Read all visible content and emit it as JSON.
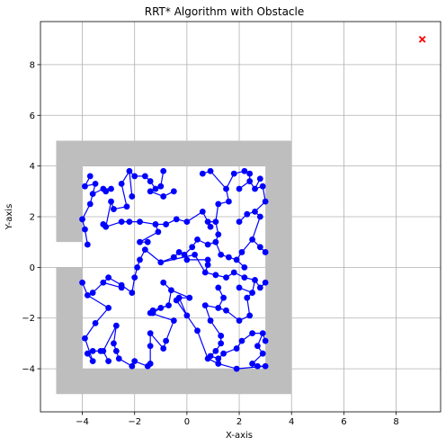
{
  "chart_data": {
    "type": "scatter",
    "title": "RRT* Algorithm with Obstacle",
    "xlabel": "X-axis",
    "ylabel": "Y-axis",
    "xlim": [
      -5.6,
      9.7
    ],
    "ylim": [
      -5.7,
      9.7
    ],
    "xticks": [
      -4,
      -2,
      0,
      2,
      4,
      6,
      8
    ],
    "yticks": [
      -4,
      -2,
      0,
      2,
      4,
      6,
      8
    ],
    "grid": true,
    "colors": {
      "tree": "#0000ff",
      "obstacle": "#bebebe",
      "goal": "#ff0000"
    },
    "obstacle": {
      "outer": [
        -5,
        -5,
        4,
        5
      ],
      "inner": [
        -4,
        -4,
        3,
        4
      ],
      "gap_y": [
        0,
        1
      ]
    },
    "goal": {
      "x": 9,
      "y": 9,
      "marker": "x"
    },
    "nodes": [
      [
        -3.7,
        3.6
      ],
      [
        -3.9,
        3.2
      ],
      [
        -3.5,
        3.3
      ],
      [
        -3.6,
        2.9
      ],
      [
        -3.2,
        3.1
      ],
      [
        -2.9,
        3.1
      ],
      [
        -3.1,
        3.0
      ],
      [
        -3.7,
        2.5
      ],
      [
        -4.0,
        1.9
      ],
      [
        -3.9,
        1.5
      ],
      [
        -3.8,
        0.9
      ],
      [
        -3.2,
        1.7
      ],
      [
        -3.1,
        1.6
      ],
      [
        -2.9,
        2.6
      ],
      [
        -2.8,
        2.3
      ],
      [
        -2.5,
        1.8
      ],
      [
        -2.3,
        2.4
      ],
      [
        -2.2,
        1.8
      ],
      [
        -2.5,
        3.3
      ],
      [
        -2.2,
        3.8
      ],
      [
        -2.1,
        2.8
      ],
      [
        -2.0,
        3.6
      ],
      [
        -1.8,
        1.8
      ],
      [
        -1.6,
        3.6
      ],
      [
        -1.4,
        3.4
      ],
      [
        -1.2,
        3.1
      ],
      [
        -1.4,
        3.0
      ],
      [
        -1.0,
        3.2
      ],
      [
        -0.9,
        3.8
      ],
      [
        -0.9,
        2.8
      ],
      [
        -0.5,
        3.0
      ],
      [
        -1.8,
        1.0
      ],
      [
        -1.5,
        1.0
      ],
      [
        -1.2,
        1.7
      ],
      [
        -1.1,
        1.4
      ],
      [
        -0.8,
        1.7
      ],
      [
        -0.4,
        1.9
      ],
      [
        0.0,
        1.8
      ],
      [
        0.6,
        2.2
      ],
      [
        0.8,
        1.8
      ],
      [
        0.9,
        1.6
      ],
      [
        1.1,
        1.8
      ],
      [
        1.2,
        2.5
      ],
      [
        1.6,
        2.6
      ],
      [
        1.5,
        3.1
      ],
      [
        1.8,
        3.7
      ],
      [
        0.9,
        3.8
      ],
      [
        0.6,
        3.7
      ],
      [
        2.2,
        3.8
      ],
      [
        2.4,
        3.7
      ],
      [
        2.4,
        3.4
      ],
      [
        2.0,
        3.1
      ],
      [
        2.6,
        3.1
      ],
      [
        2.9,
        3.2
      ],
      [
        2.8,
        3.5
      ],
      [
        3.0,
        2.6
      ],
      [
        2.6,
        2.2
      ],
      [
        2.3,
        2.1
      ],
      [
        2.8,
        2.0
      ],
      [
        2.0,
        1.8
      ],
      [
        2.5,
        1.1
      ],
      [
        2.8,
        0.8
      ],
      [
        3.0,
        0.6
      ],
      [
        2.1,
        0.6
      ],
      [
        1.9,
        0.3
      ],
      [
        2.2,
        0.0
      ],
      [
        1.6,
        0.4
      ],
      [
        1.3,
        0.5
      ],
      [
        1.1,
        1.0
      ],
      [
        1.2,
        1.3
      ],
      [
        0.8,
        0.9
      ],
      [
        0.4,
        1.1
      ],
      [
        0.2,
        0.8
      ],
      [
        -0.1,
        0.5
      ],
      [
        -0.3,
        0.6
      ],
      [
        -0.5,
        0.4
      ],
      [
        0.0,
        0.3
      ],
      [
        0.8,
        0.3
      ],
      [
        0.8,
        0.1
      ],
      [
        0.7,
        -0.2
      ],
      [
        1.1,
        -0.3
      ],
      [
        1.5,
        -0.4
      ],
      [
        1.8,
        -0.2
      ],
      [
        2.2,
        -0.4
      ],
      [
        2.6,
        -0.5
      ],
      [
        2.8,
        -0.8
      ],
      [
        3.0,
        -0.6
      ],
      [
        2.5,
        -1.0
      ],
      [
        2.0,
        -0.8
      ],
      [
        2.3,
        -1.2
      ],
      [
        2.4,
        -1.9
      ],
      [
        2.0,
        -2.1
      ],
      [
        1.5,
        -1.7
      ],
      [
        1.2,
        -1.6
      ],
      [
        1.4,
        -1.2
      ],
      [
        1.2,
        -0.8
      ],
      [
        0.7,
        -1.5
      ],
      [
        0.9,
        -2.1
      ],
      [
        1.3,
        -2.7
      ],
      [
        1.3,
        -3.0
      ],
      [
        1.1,
        -3.3
      ],
      [
        0.9,
        -3.5
      ],
      [
        1.2,
        -3.6
      ],
      [
        1.4,
        -3.4
      ],
      [
        1.9,
        -3.2
      ],
      [
        2.1,
        -2.9
      ],
      [
        2.5,
        -2.6
      ],
      [
        2.9,
        -2.6
      ],
      [
        2.7,
        -3.1
      ],
      [
        2.9,
        -3.4
      ],
      [
        3.0,
        -2.9
      ],
      [
        2.5,
        -3.8
      ],
      [
        2.7,
        -3.9
      ],
      [
        3.0,
        -3.9
      ],
      [
        1.9,
        -4.0
      ],
      [
        1.2,
        -3.8
      ],
      [
        0.8,
        -3.6
      ],
      [
        0.4,
        -2.5
      ],
      [
        0.0,
        -1.9
      ],
      [
        -0.4,
        -1.3
      ],
      [
        -0.3,
        -1.2
      ],
      [
        0.1,
        -1.2
      ],
      [
        -0.6,
        -0.9
      ],
      [
        -0.9,
        -0.6
      ],
      [
        -0.7,
        -1.5
      ],
      [
        -1.0,
        -1.6
      ],
      [
        -1.3,
        -1.8
      ],
      [
        -1.4,
        -1.8
      ],
      [
        -0.5,
        -2.1
      ],
      [
        -0.8,
        -2.9
      ],
      [
        -0.9,
        -3.2
      ],
      [
        -1.4,
        -2.6
      ],
      [
        -1.4,
        -3.1
      ],
      [
        -1.4,
        -3.8
      ],
      [
        -1.5,
        -3.9
      ],
      [
        -2.0,
        -3.7
      ],
      [
        -2.1,
        -3.9
      ],
      [
        -2.6,
        -3.6
      ],
      [
        -2.7,
        -3.3
      ],
      [
        -2.8,
        -3.0
      ],
      [
        -2.7,
        -2.3
      ],
      [
        -3.2,
        -3.3
      ],
      [
        -3.0,
        -3.7
      ],
      [
        -3.3,
        -3.3
      ],
      [
        -3.6,
        -3.3
      ],
      [
        -3.8,
        -3.4
      ],
      [
        -3.6,
        -3.7
      ],
      [
        -3.9,
        -2.8
      ],
      [
        -3.5,
        -2.2
      ],
      [
        -3.0,
        -1.6
      ],
      [
        -3.8,
        -1.1
      ],
      [
        -3.6,
        -1.0
      ],
      [
        -3.2,
        -0.6
      ],
      [
        -3.0,
        -0.4
      ],
      [
        -2.5,
        -0.7
      ],
      [
        -2.1,
        -1.0
      ],
      [
        -2.0,
        -0.4
      ],
      [
        -1.9,
        0.0
      ],
      [
        -1.8,
        0.3
      ],
      [
        -1.6,
        0.7
      ],
      [
        -1.0,
        0.2
      ],
      [
        -0.5,
        0.4
      ],
      [
        0.3,
        0.5
      ],
      [
        -4.0,
        -0.6
      ],
      [
        -1.3,
        -1.7
      ],
      [
        -2.5,
        -0.8
      ]
    ],
    "edges": [
      [
        0,
        1
      ],
      [
        1,
        2
      ],
      [
        2,
        3
      ],
      [
        3,
        4
      ],
      [
        4,
        5
      ],
      [
        4,
        6
      ],
      [
        3,
        7
      ],
      [
        7,
        8
      ],
      [
        8,
        9
      ],
      [
        9,
        10
      ],
      [
        11,
        12
      ],
      [
        12,
        13
      ],
      [
        13,
        14
      ],
      [
        12,
        15
      ],
      [
        15,
        17
      ],
      [
        14,
        16
      ],
      [
        16,
        18
      ],
      [
        18,
        19
      ],
      [
        19,
        20
      ],
      [
        19,
        21
      ],
      [
        17,
        22
      ],
      [
        21,
        23
      ],
      [
        23,
        24
      ],
      [
        24,
        25
      ],
      [
        25,
        26
      ],
      [
        25,
        27
      ],
      [
        27,
        28
      ],
      [
        26,
        29
      ],
      [
        29,
        30
      ],
      [
        22,
        33
      ],
      [
        33,
        34
      ],
      [
        34,
        31
      ],
      [
        31,
        32
      ],
      [
        33,
        35
      ],
      [
        35,
        36
      ],
      [
        36,
        37
      ],
      [
        37,
        38
      ],
      [
        38,
        39
      ],
      [
        39,
        40
      ],
      [
        39,
        41
      ],
      [
        41,
        42
      ],
      [
        42,
        43
      ],
      [
        43,
        44
      ],
      [
        44,
        45
      ],
      [
        44,
        46
      ],
      [
        46,
        47
      ],
      [
        45,
        48
      ],
      [
        48,
        49
      ],
      [
        49,
        50
      ],
      [
        50,
        51
      ],
      [
        50,
        52
      ],
      [
        52,
        53
      ],
      [
        52,
        54
      ],
      [
        53,
        55
      ],
      [
        55,
        56
      ],
      [
        56,
        57
      ],
      [
        56,
        58
      ],
      [
        57,
        59
      ],
      [
        58,
        60
      ],
      [
        60,
        61
      ],
      [
        61,
        62
      ],
      [
        60,
        63
      ],
      [
        63,
        64
      ],
      [
        64,
        65
      ],
      [
        64,
        66
      ],
      [
        66,
        67
      ],
      [
        67,
        68
      ],
      [
        68,
        69
      ],
      [
        69,
        41
      ],
      [
        68,
        70
      ],
      [
        70,
        71
      ],
      [
        71,
        72
      ],
      [
        72,
        73
      ],
      [
        73,
        74
      ],
      [
        74,
        75
      ],
      [
        73,
        76
      ],
      [
        76,
        77
      ],
      [
        77,
        78
      ],
      [
        78,
        79
      ],
      [
        79,
        80
      ],
      [
        80,
        81
      ],
      [
        81,
        82
      ],
      [
        82,
        83
      ],
      [
        83,
        84
      ],
      [
        84,
        85
      ],
      [
        85,
        86
      ],
      [
        84,
        87
      ],
      [
        87,
        88
      ],
      [
        87,
        89
      ],
      [
        89,
        90
      ],
      [
        90,
        91
      ],
      [
        91,
        92
      ],
      [
        92,
        93
      ],
      [
        93,
        94
      ],
      [
        94,
        95
      ],
      [
        93,
        96
      ],
      [
        96,
        97
      ],
      [
        97,
        98
      ],
      [
        98,
        99
      ],
      [
        99,
        100
      ],
      [
        100,
        101
      ],
      [
        101,
        102
      ],
      [
        102,
        103
      ],
      [
        103,
        104
      ],
      [
        104,
        105
      ],
      [
        105,
        106
      ],
      [
        106,
        107
      ],
      [
        107,
        108
      ],
      [
        108,
        109
      ],
      [
        107,
        110
      ],
      [
        109,
        111
      ],
      [
        111,
        112
      ],
      [
        112,
        113
      ],
      [
        113,
        114
      ],
      [
        114,
        115
      ],
      [
        115,
        116
      ],
      [
        116,
        117
      ],
      [
        117,
        118
      ],
      [
        118,
        119
      ],
      [
        118,
        120
      ],
      [
        120,
        121
      ],
      [
        121,
        122
      ],
      [
        122,
        123
      ],
      [
        122,
        124
      ],
      [
        124,
        125
      ],
      [
        125,
        126
      ],
      [
        126,
        127
      ],
      [
        127,
        128
      ],
      [
        128,
        129
      ],
      [
        129,
        130
      ],
      [
        130,
        131
      ],
      [
        131,
        132
      ],
      [
        132,
        133
      ],
      [
        133,
        134
      ],
      [
        134,
        135
      ],
      [
        135,
        136
      ],
      [
        136,
        137
      ],
      [
        137,
        138
      ],
      [
        138,
        139
      ],
      [
        139,
        140
      ],
      [
        140,
        141
      ],
      [
        141,
        142
      ],
      [
        141,
        143
      ],
      [
        143,
        144
      ],
      [
        144,
        145
      ],
      [
        145,
        146
      ],
      [
        146,
        147
      ],
      [
        147,
        148
      ],
      [
        148,
        149
      ],
      [
        149,
        150
      ],
      [
        150,
        151
      ],
      [
        151,
        152
      ],
      [
        152,
        153
      ],
      [
        153,
        154
      ],
      [
        154,
        155
      ],
      [
        155,
        156
      ],
      [
        156,
        157
      ],
      [
        157,
        158
      ],
      [
        158,
        159
      ],
      [
        159,
        160
      ],
      [
        160,
        161
      ],
      [
        161,
        75
      ],
      [
        160,
        162
      ],
      [
        162,
        79
      ],
      [
        150,
        163
      ],
      [
        124,
        164
      ],
      [
        152,
        165
      ]
    ]
  }
}
